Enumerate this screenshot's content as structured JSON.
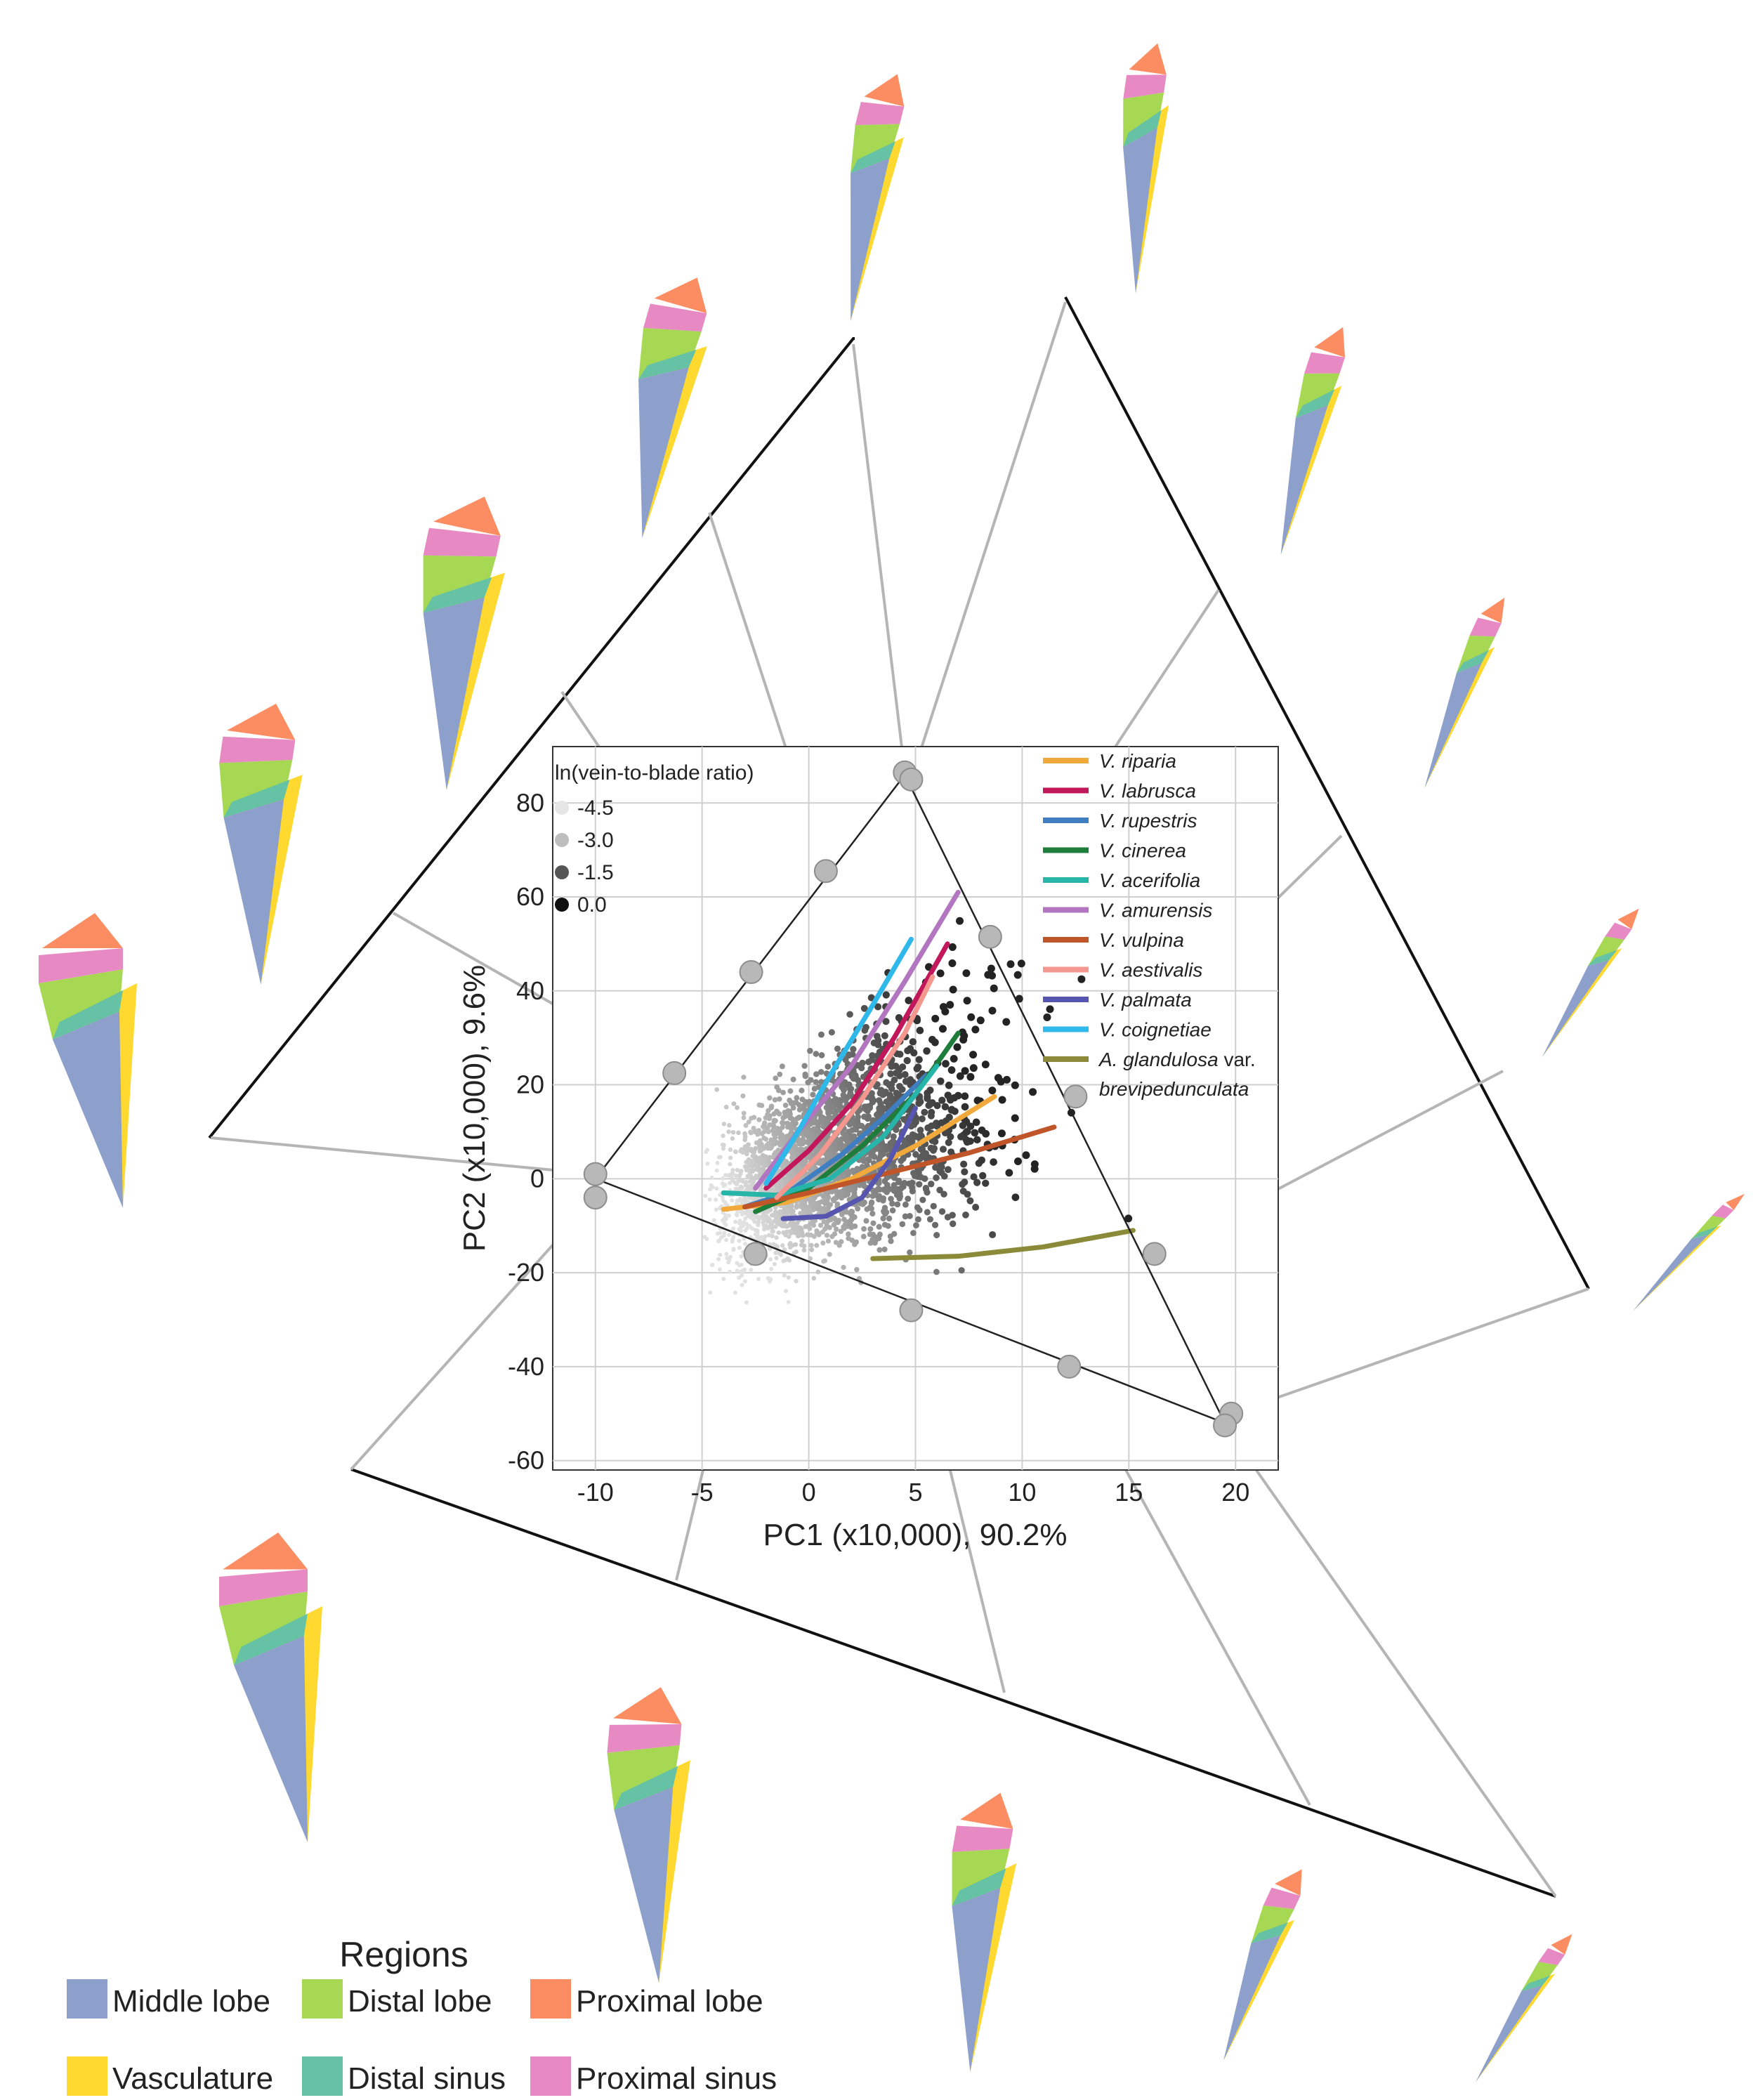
{
  "chart_data": {
    "type": "scatter",
    "xlabel": "PC1 (x10,000), 90.2%",
    "ylabel": "PC2 (x10,000), 9.6%",
    "xlim": [
      -12,
      22
    ],
    "ylim": [
      -62,
      92
    ],
    "xticks": [
      -10,
      -5,
      0,
      5,
      10,
      15,
      20
    ],
    "yticks": [
      -60,
      -40,
      -20,
      0,
      20,
      40,
      60,
      80
    ],
    "grid": true,
    "size_legend": {
      "title": "ln(vein-to-blade ratio)",
      "labels": [
        "-4.5",
        "-3.0",
        "-1.5",
        "0.0"
      ],
      "colors": [
        "#e6e6e6",
        "#bdbdbd",
        "#555555",
        "#111111"
      ]
    },
    "morphospace_triangle": [
      [
        -10,
        0
      ],
      [
        4.5,
        86
      ],
      [
        19.5,
        -52
      ]
    ],
    "sample_points": [
      [
        -10,
        1
      ],
      [
        -10,
        -4
      ],
      [
        -6.3,
        22.5
      ],
      [
        -2.7,
        44
      ],
      [
        0.8,
        65.5
      ],
      [
        4.5,
        86.5
      ],
      [
        4.8,
        85
      ],
      [
        8.5,
        51.5
      ],
      [
        12.5,
        17.5
      ],
      [
        16.2,
        -16
      ],
      [
        19.8,
        -50
      ],
      [
        19.5,
        -52.5
      ],
      [
        12.2,
        -40
      ],
      [
        4.8,
        -28
      ],
      [
        -2.5,
        -16
      ]
    ],
    "series": [
      {
        "name": "V. riparia",
        "color": "#f2a93b",
        "x": [
          -4,
          -1,
          2,
          5,
          8.7
        ],
        "y": [
          -6.5,
          -5,
          0,
          7,
          17.5
        ]
      },
      {
        "name": "V. labrusca",
        "color": "#c2185b",
        "x": [
          -2,
          0,
          2,
          4,
          6.5
        ],
        "y": [
          -2,
          6,
          16,
          30,
          50
        ]
      },
      {
        "name": "V. rupestris",
        "color": "#3f7fc1",
        "x": [
          -3,
          -1,
          1.5,
          3.5,
          5.5
        ],
        "y": [
          -6,
          -3,
          5,
          13,
          22
        ]
      },
      {
        "name": "V. cinerea",
        "color": "#1e7d3a",
        "x": [
          -2.5,
          0,
          2.5,
          5,
          7
        ],
        "y": [
          -7,
          -2,
          7,
          18,
          31
        ]
      },
      {
        "name": "V. acerifolia",
        "color": "#26b5a8",
        "x": [
          -4,
          -1.5,
          1,
          3.5,
          6
        ],
        "y": [
          -3,
          -3.5,
          0,
          9,
          24
        ]
      },
      {
        "name": "V. amurensis",
        "color": "#b276c0",
        "x": [
          -2.5,
          -0.5,
          2,
          4.5,
          7
        ],
        "y": [
          -2,
          10,
          24,
          42,
          61
        ]
      },
      {
        "name": "V. vulpina",
        "color": "#c0552a",
        "x": [
          -3,
          0,
          3.5,
          7.5,
          11.5
        ],
        "y": [
          -6,
          -3,
          1,
          5.5,
          11
        ]
      },
      {
        "name": "V. aestivalis",
        "color": "#f4978e",
        "x": [
          -1.5,
          0.5,
          2.5,
          4.5,
          5.8
        ],
        "y": [
          -4,
          5,
          17,
          31,
          43
        ]
      },
      {
        "name": "V. palmata",
        "color": "#5656b0",
        "x": [
          -1.2,
          0.8,
          2.5,
          3.8,
          5
        ],
        "y": [
          -8.5,
          -8,
          -4,
          4,
          15
        ]
      },
      {
        "name": "V. coignetiae",
        "color": "#2fb8ea",
        "x": [
          -2,
          -0.5,
          1,
          3,
          4.8
        ],
        "y": [
          -1,
          10,
          22,
          37,
          51
        ]
      },
      {
        "name": "A. glandulosa var. brevipedunculata",
        "color": "#8a8a38",
        "x": [
          3,
          7,
          11,
          15.2
        ],
        "y": [
          -17,
          -16.5,
          -14.5,
          -11
        ]
      }
    ]
  },
  "legend": {
    "entries": [
      {
        "label": "V. riparia",
        "color": "#f2a93b"
      },
      {
        "label": "V. labrusca",
        "color": "#c2185b"
      },
      {
        "label": "V. rupestris",
        "color": "#3f7fc1"
      },
      {
        "label": "V. cinerea",
        "color": "#1e7d3a"
      },
      {
        "label": "V. acerifolia",
        "color": "#26b5a8"
      },
      {
        "label": "V. amurensis",
        "color": "#b276c0"
      },
      {
        "label": "V. vulpina",
        "color": "#c0552a"
      },
      {
        "label": "V. aestivalis",
        "color": "#f4978e"
      },
      {
        "label": "V. palmata",
        "color": "#5656b0"
      },
      {
        "label": "V. coignetiae",
        "color": "#2fb8ea"
      }
    ],
    "last": {
      "label1": "A. glandulosa",
      "label2": " var.",
      "label3": "brevipedunculata",
      "color": "#8a8a38"
    }
  },
  "regions": {
    "title": "Regions",
    "items": [
      {
        "label": "Middle lobe",
        "color": "#8da0cb"
      },
      {
        "label": "Distal lobe",
        "color": "#a6d854"
      },
      {
        "label": "Proximal lobe",
        "color": "#fc8d62"
      },
      {
        "label": "Vasculature",
        "color": "#ffd92f"
      },
      {
        "label": "Distal sinus",
        "color": "#66c2a5"
      },
      {
        "label": "Proximal sinus",
        "color": "#e78ac3"
      }
    ]
  }
}
